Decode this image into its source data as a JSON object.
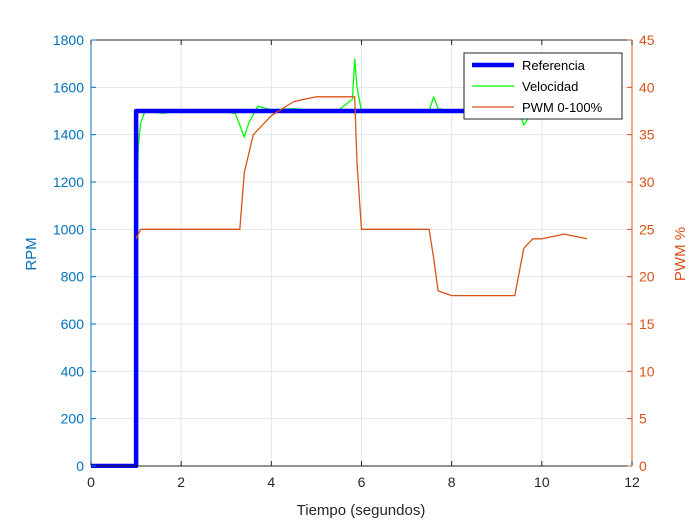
{
  "chart_data": {
    "type": "line",
    "title": "",
    "xlabel": "Tiempo (segundos)",
    "ylabel_left": "RPM",
    "ylabel_right": "PWM %",
    "xlim": [
      0,
      12
    ],
    "ylim_left": [
      0,
      1800
    ],
    "ylim_right": [
      0,
      45
    ],
    "x_ticks": [
      0,
      2,
      4,
      6,
      8,
      10,
      12
    ],
    "y_ticks_left": [
      0,
      200,
      400,
      600,
      800,
      1000,
      1200,
      1400,
      1600,
      1800
    ],
    "y_ticks_right": [
      0,
      5,
      10,
      15,
      20,
      25,
      30,
      35,
      40,
      45
    ],
    "grid": true,
    "legend_position": "top-right",
    "colors": {
      "left_axis": "#0072BD",
      "right_axis": "#D95319",
      "referencia": "#0000FF",
      "velocidad": "#00FF00",
      "pwm": "#D95319",
      "grid": "#dfe7ee",
      "axis": "#262626"
    },
    "series": [
      {
        "name": "Referencia",
        "axis": "left",
        "x": [
          0,
          1.0,
          1.0,
          11.0
        ],
        "y": [
          0,
          0,
          1500,
          1500
        ]
      },
      {
        "name": "Velocidad",
        "axis": "left",
        "x": [
          0,
          0.97,
          1.0,
          1.05,
          1.1,
          1.2,
          1.6,
          2.0,
          2.4,
          2.8,
          3.2,
          3.4,
          3.5,
          3.7,
          4.0,
          4.5,
          5.0,
          5.5,
          5.8,
          5.85,
          5.9,
          6.0,
          6.5,
          7.0,
          7.5,
          7.6,
          7.7,
          8.0,
          8.5,
          9.0,
          9.5,
          9.6,
          9.7,
          10.0,
          10.5,
          11.0
        ],
        "y": [
          0,
          0,
          1000,
          1350,
          1450,
          1500,
          1490,
          1505,
          1495,
          1500,
          1490,
          1390,
          1450,
          1520,
          1505,
          1510,
          1500,
          1505,
          1550,
          1720,
          1600,
          1500,
          1495,
          1505,
          1500,
          1560,
          1510,
          1500,
          1495,
          1505,
          1500,
          1440,
          1470,
          1500,
          1495,
          1480
        ]
      },
      {
        "name": "PWM 0-100%",
        "axis": "right",
        "x": [
          1.0,
          1.1,
          1.5,
          2.0,
          2.5,
          3.0,
          3.3,
          3.4,
          3.6,
          4.0,
          4.5,
          5.0,
          5.5,
          5.85,
          5.9,
          6.0,
          6.5,
          7.0,
          7.5,
          7.6,
          7.7,
          8.0,
          8.5,
          9.0,
          9.4,
          9.6,
          9.8,
          10.0,
          10.5,
          11.0
        ],
        "y": [
          24,
          25,
          25,
          25,
          25,
          25,
          25,
          31,
          35,
          37,
          38.5,
          39,
          39,
          39,
          32,
          25,
          25,
          25,
          25,
          22,
          18.5,
          18,
          18,
          18,
          18,
          23,
          24,
          24,
          24.5,
          24
        ]
      }
    ]
  }
}
